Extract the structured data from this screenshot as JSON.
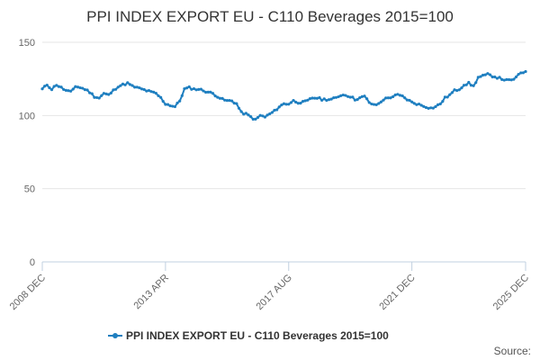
{
  "chart_data": {
    "type": "line",
    "title": "PPI INDEX EXPORT EU - C110 Beverages 2015=100",
    "xlabel": "",
    "ylabel": "",
    "ylim": [
      0,
      150
    ],
    "yticks": [
      0,
      50,
      100,
      150
    ],
    "x_tick_labels": [
      "2008 DEC",
      "2013 APR",
      "2017 AUG",
      "2021 DEC",
      "2025 DEC"
    ],
    "x_tick_indices": [
      0,
      52,
      104,
      156,
      204
    ],
    "legend_position": "bottom-center",
    "credits": "Source:",
    "colors": {
      "series": "#1f7fc0"
    },
    "series": [
      {
        "name": "PPI INDEX EXPORT EU - C110 Beverages 2015=100",
        "anchors": [
          [
            0,
            118
          ],
          [
            2,
            121
          ],
          [
            4,
            118
          ],
          [
            6,
            121
          ],
          [
            8,
            119
          ],
          [
            10,
            117
          ],
          [
            12,
            116
          ],
          [
            14,
            120
          ],
          [
            16,
            119
          ],
          [
            18,
            118
          ],
          [
            20,
            116
          ],
          [
            22,
            113
          ],
          [
            24,
            112
          ],
          [
            26,
            115
          ],
          [
            28,
            114
          ],
          [
            30,
            117
          ],
          [
            32,
            120
          ],
          [
            34,
            121
          ],
          [
            36,
            122
          ],
          [
            38,
            120
          ],
          [
            40,
            119
          ],
          [
            42,
            118
          ],
          [
            44,
            117
          ],
          [
            46,
            116
          ],
          [
            48,
            115
          ],
          [
            50,
            112
          ],
          [
            52,
            108
          ],
          [
            54,
            107
          ],
          [
            56,
            106
          ],
          [
            58,
            110
          ],
          [
            60,
            118
          ],
          [
            62,
            119
          ],
          [
            64,
            118
          ],
          [
            66,
            118
          ],
          [
            68,
            117
          ],
          [
            70,
            116
          ],
          [
            72,
            115
          ],
          [
            74,
            113
          ],
          [
            76,
            111
          ],
          [
            78,
            110
          ],
          [
            80,
            110
          ],
          [
            82,
            108
          ],
          [
            84,
            102
          ],
          [
            86,
            101
          ],
          [
            88,
            99
          ],
          [
            90,
            97
          ],
          [
            92,
            100
          ],
          [
            94,
            99
          ],
          [
            96,
            101
          ],
          [
            98,
            103
          ],
          [
            100,
            106
          ],
          [
            102,
            108
          ],
          [
            104,
            108
          ],
          [
            106,
            110
          ],
          [
            108,
            109
          ],
          [
            110,
            109
          ],
          [
            112,
            110
          ],
          [
            114,
            112
          ],
          [
            116,
            112
          ],
          [
            118,
            111
          ],
          [
            120,
            111
          ],
          [
            122,
            111
          ],
          [
            124,
            112
          ],
          [
            126,
            114
          ],
          [
            128,
            114
          ],
          [
            130,
            113
          ],
          [
            132,
            111
          ],
          [
            134,
            112
          ],
          [
            136,
            113
          ],
          [
            138,
            109
          ],
          [
            140,
            107
          ],
          [
            142,
            108
          ],
          [
            144,
            111
          ],
          [
            146,
            112
          ],
          [
            148,
            113
          ],
          [
            150,
            114
          ],
          [
            152,
            113
          ],
          [
            154,
            111
          ],
          [
            156,
            109
          ],
          [
            158,
            108
          ],
          [
            160,
            107
          ],
          [
            162,
            106
          ],
          [
            164,
            105
          ],
          [
            166,
            106
          ],
          [
            168,
            108
          ],
          [
            170,
            112
          ],
          [
            172,
            114
          ],
          [
            174,
            117
          ],
          [
            176,
            118
          ],
          [
            178,
            121
          ],
          [
            180,
            122
          ],
          [
            182,
            120
          ],
          [
            184,
            126
          ],
          [
            186,
            127
          ],
          [
            188,
            128
          ],
          [
            190,
            127
          ],
          [
            192,
            126
          ],
          [
            194,
            125
          ],
          [
            196,
            124
          ],
          [
            198,
            124
          ],
          [
            200,
            126
          ],
          [
            202,
            129
          ],
          [
            204,
            130
          ]
        ]
      }
    ]
  }
}
